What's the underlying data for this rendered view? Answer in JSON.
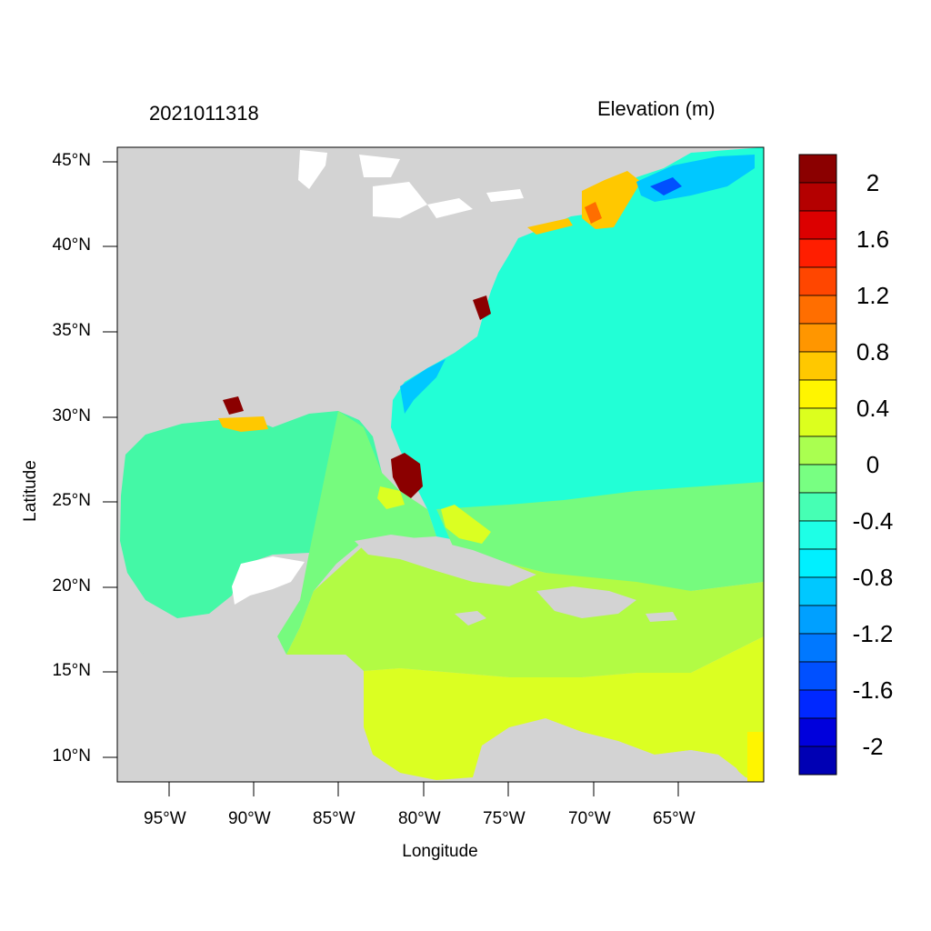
{
  "header": {
    "timestamp": "2021011318",
    "variable_title": "Elevation (m)"
  },
  "axes": {
    "xlabel": "Longitude",
    "ylabel": "Latitude",
    "x_ticks": [
      "95°W",
      "90°W",
      "85°W",
      "80°W",
      "75°W",
      "70°W",
      "65°W"
    ],
    "y_ticks": [
      "10°N",
      "15°N",
      "20°N",
      "25°N",
      "30°N",
      "35°N",
      "40°N",
      "45°N"
    ]
  },
  "colorbar": {
    "labels": [
      "2",
      "1.6",
      "1.2",
      "0.8",
      "0.4",
      "0",
      "-0.4",
      "-0.8",
      "-1.2",
      "-1.6",
      "-2"
    ],
    "colors": [
      "#8b0000",
      "#b40000",
      "#dc0000",
      "#ff1e00",
      "#ff4600",
      "#ff6e00",
      "#ff9600",
      "#ffc800",
      "#fff500",
      "#dcff1e",
      "#aaff50",
      "#78ff82",
      "#46ffb4",
      "#1effe6",
      "#00f0ff",
      "#00c8ff",
      "#00a0ff",
      "#0078ff",
      "#0050ff",
      "#0028ff",
      "#0000dc",
      "#0000b4"
    ]
  },
  "map": {
    "land_color": "#d3d3d3",
    "water_color": "#ffffff"
  }
}
